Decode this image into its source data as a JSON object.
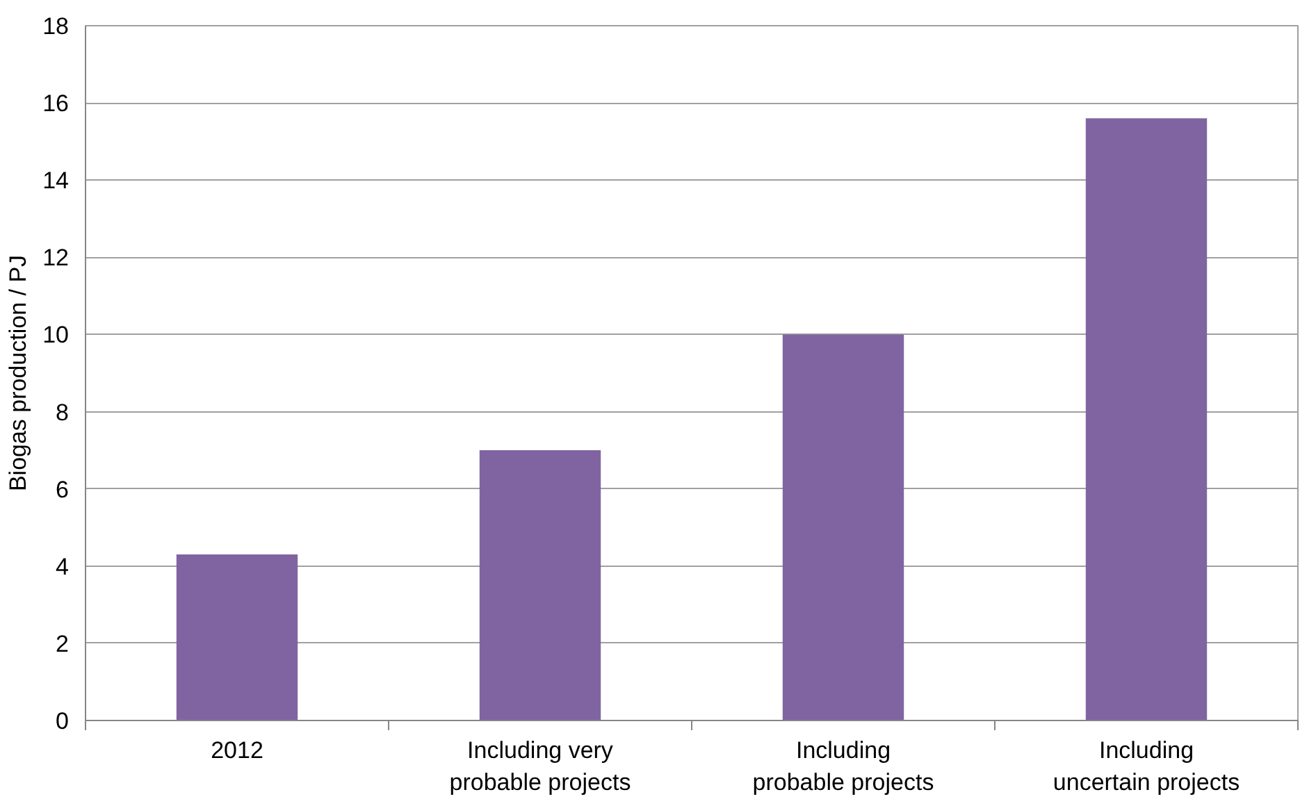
{
  "chart_data": {
    "type": "bar",
    "ylabel": "Biogas production / PJ",
    "categories": [
      "2012",
      "Including very probable projects",
      "Including probable projects",
      "Including uncertain projects"
    ],
    "values": [
      4.3,
      7.0,
      10.0,
      15.6
    ],
    "color": "#8064a2",
    "ylim": [
      0,
      18
    ],
    "yticks": [
      0,
      2,
      4,
      6,
      8,
      10,
      12,
      14,
      16,
      18
    ],
    "grid": "y"
  }
}
